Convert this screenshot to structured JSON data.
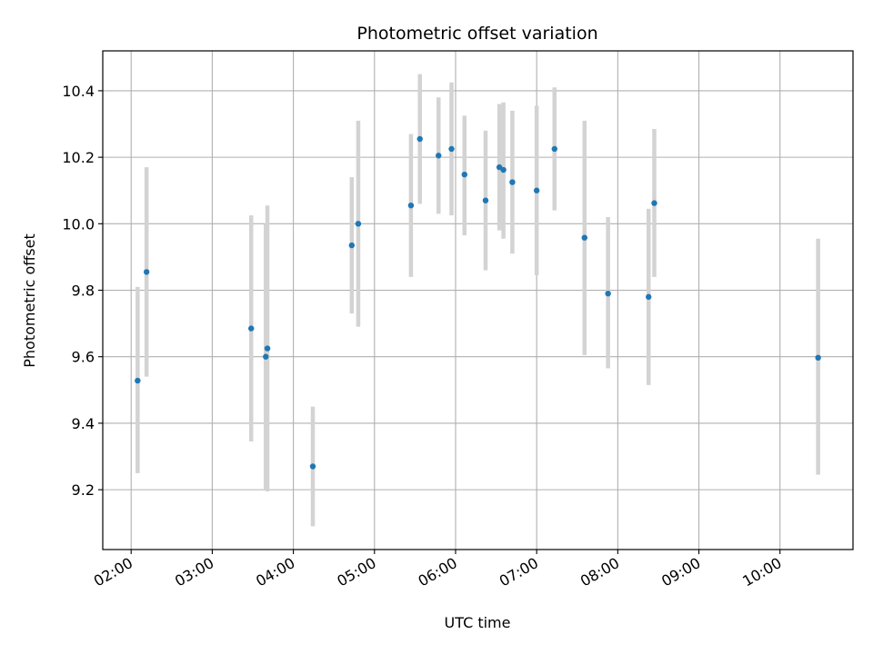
{
  "chart_data": {
    "type": "scatter",
    "title": "Photometric offset variation",
    "xlabel": "UTC time",
    "ylabel": "Photometric offset",
    "x_tick_labels": [
      "02:00",
      "03:00",
      "04:00",
      "05:00",
      "06:00",
      "07:00",
      "08:00",
      "09:00",
      "10:00"
    ],
    "x_ticks_hours": [
      2,
      3,
      4,
      5,
      6,
      7,
      8,
      9,
      10
    ],
    "y_ticks": [
      9.2,
      9.4,
      9.6,
      9.8,
      10.0,
      10.2,
      10.4
    ],
    "y_tick_labels": [
      "9.2",
      "9.4",
      "9.6",
      "9.8",
      "10.0",
      "10.2",
      "10.4"
    ],
    "xlim_hours": [
      1.65,
      10.9
    ],
    "ylim": [
      9.02,
      10.52
    ],
    "grid": true,
    "colors": {
      "point": "#1f77b4",
      "errorbar": "#d3d3d3",
      "grid": "#b0b0b0"
    },
    "points": [
      {
        "t": 2.08,
        "y": 9.528,
        "lo": 9.25,
        "hi": 9.81
      },
      {
        "t": 2.19,
        "y": 9.855,
        "lo": 9.54,
        "hi": 10.17
      },
      {
        "t": 3.48,
        "y": 9.685,
        "lo": 9.345,
        "hi": 10.025
      },
      {
        "t": 3.66,
        "y": 9.6,
        "lo": 9.2,
        "hi": 10.0
      },
      {
        "t": 3.68,
        "y": 9.625,
        "lo": 9.195,
        "hi": 10.055
      },
      {
        "t": 4.24,
        "y": 9.27,
        "lo": 9.09,
        "hi": 9.45
      },
      {
        "t": 4.72,
        "y": 9.935,
        "lo": 9.73,
        "hi": 10.14
      },
      {
        "t": 4.8,
        "y": 10.0,
        "lo": 9.69,
        "hi": 10.31
      },
      {
        "t": 5.45,
        "y": 10.055,
        "lo": 9.84,
        "hi": 10.27
      },
      {
        "t": 5.56,
        "y": 10.255,
        "lo": 10.06,
        "hi": 10.45
      },
      {
        "t": 5.79,
        "y": 10.205,
        "lo": 10.03,
        "hi": 10.38
      },
      {
        "t": 5.95,
        "y": 10.225,
        "lo": 10.025,
        "hi": 10.425
      },
      {
        "t": 6.11,
        "y": 10.148,
        "lo": 9.965,
        "hi": 10.325
      },
      {
        "t": 6.37,
        "y": 10.07,
        "lo": 9.86,
        "hi": 10.28
      },
      {
        "t": 6.54,
        "y": 10.17,
        "lo": 9.98,
        "hi": 10.36
      },
      {
        "t": 6.59,
        "y": 10.162,
        "lo": 9.955,
        "hi": 10.365
      },
      {
        "t": 6.7,
        "y": 10.125,
        "lo": 9.91,
        "hi": 10.34
      },
      {
        "t": 7.0,
        "y": 10.1,
        "lo": 9.845,
        "hi": 10.355
      },
      {
        "t": 7.22,
        "y": 10.225,
        "lo": 10.04,
        "hi": 10.41
      },
      {
        "t": 7.59,
        "y": 9.958,
        "lo": 9.605,
        "hi": 10.31
      },
      {
        "t": 7.88,
        "y": 9.79,
        "lo": 9.565,
        "hi": 10.02
      },
      {
        "t": 8.38,
        "y": 9.78,
        "lo": 9.515,
        "hi": 10.045
      },
      {
        "t": 8.45,
        "y": 10.062,
        "lo": 9.84,
        "hi": 10.285
      },
      {
        "t": 10.47,
        "y": 9.597,
        "lo": 9.245,
        "hi": 9.955
      }
    ]
  }
}
